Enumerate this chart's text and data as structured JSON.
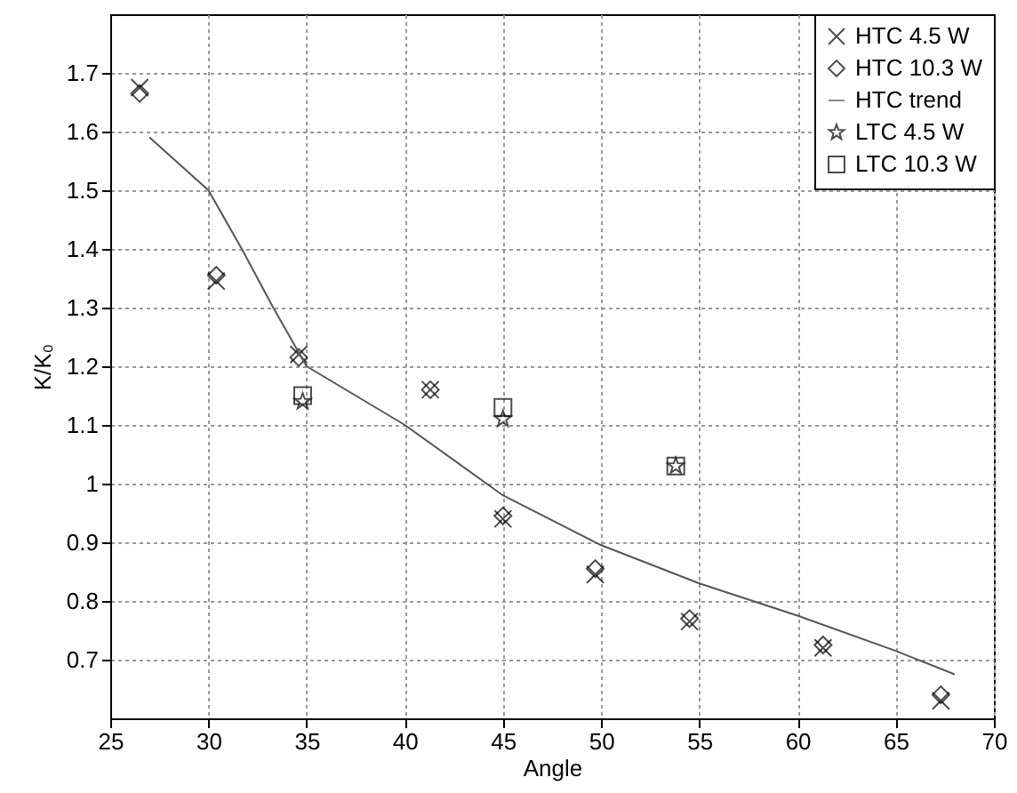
{
  "chart_data": {
    "type": "scatter",
    "xlabel": "Angle",
    "ylabel": "K/K₀",
    "xlim": [
      25,
      70
    ],
    "xticks": [
      25,
      30,
      35,
      40,
      45,
      50,
      55,
      60,
      65,
      70
    ],
    "ylim": [
      0.6,
      1.8
    ],
    "yticks": [
      0.7,
      0.8,
      0.9,
      1,
      1.1,
      1.2,
      1.3,
      1.4,
      1.5,
      1.6,
      1.7
    ],
    "grid": true,
    "legend": "top right",
    "series": [
      {
        "name": "HTC 4.5 W",
        "type": "scatter",
        "marker": "cross",
        "color": "#000000",
        "x": [
          26.5,
          30.4,
          34.6,
          41.3,
          45,
          49.7,
          54.5,
          61.3,
          67.3
        ],
        "values": [
          1.675,
          1.345,
          1.22,
          1.16,
          0.94,
          0.845,
          0.765,
          0.72,
          0.63
        ]
      },
      {
        "name": "HTC 10.3 W",
        "type": "scatter",
        "marker": "diamond",
        "color": "#000000",
        "x": [
          26.5,
          30.4,
          34.6,
          41.3,
          45,
          49.7,
          54.5,
          61.3,
          67.3
        ],
        "values": [
          1.665,
          1.355,
          1.215,
          1.16,
          0.945,
          0.855,
          0.77,
          0.725,
          0.64
        ]
      },
      {
        "name": "HTC trend",
        "type": "line",
        "marker": "none",
        "line_style": "solid",
        "color": "#555555",
        "x": [
          27,
          30,
          31.7,
          33.3,
          35,
          37.5,
          40,
          45,
          50,
          55,
          60,
          65,
          68
        ],
        "values": [
          1.59,
          1.5,
          1.4,
          1.3,
          1.2,
          1.15,
          1.1,
          0.98,
          0.895,
          0.83,
          0.775,
          0.715,
          0.675
        ]
      },
      {
        "name": "LTC 4.5 W",
        "type": "scatter",
        "marker": "star",
        "color": "#000000",
        "x": [
          34.8,
          45,
          53.8
        ],
        "values": [
          1.14,
          1.11,
          1.03
        ]
      },
      {
        "name": "LTC 10.3 W",
        "type": "scatter",
        "marker": "square",
        "color": "#000000",
        "x": [
          34.8,
          45,
          53.8
        ],
        "values": [
          1.15,
          1.13,
          1.03
        ]
      }
    ]
  }
}
